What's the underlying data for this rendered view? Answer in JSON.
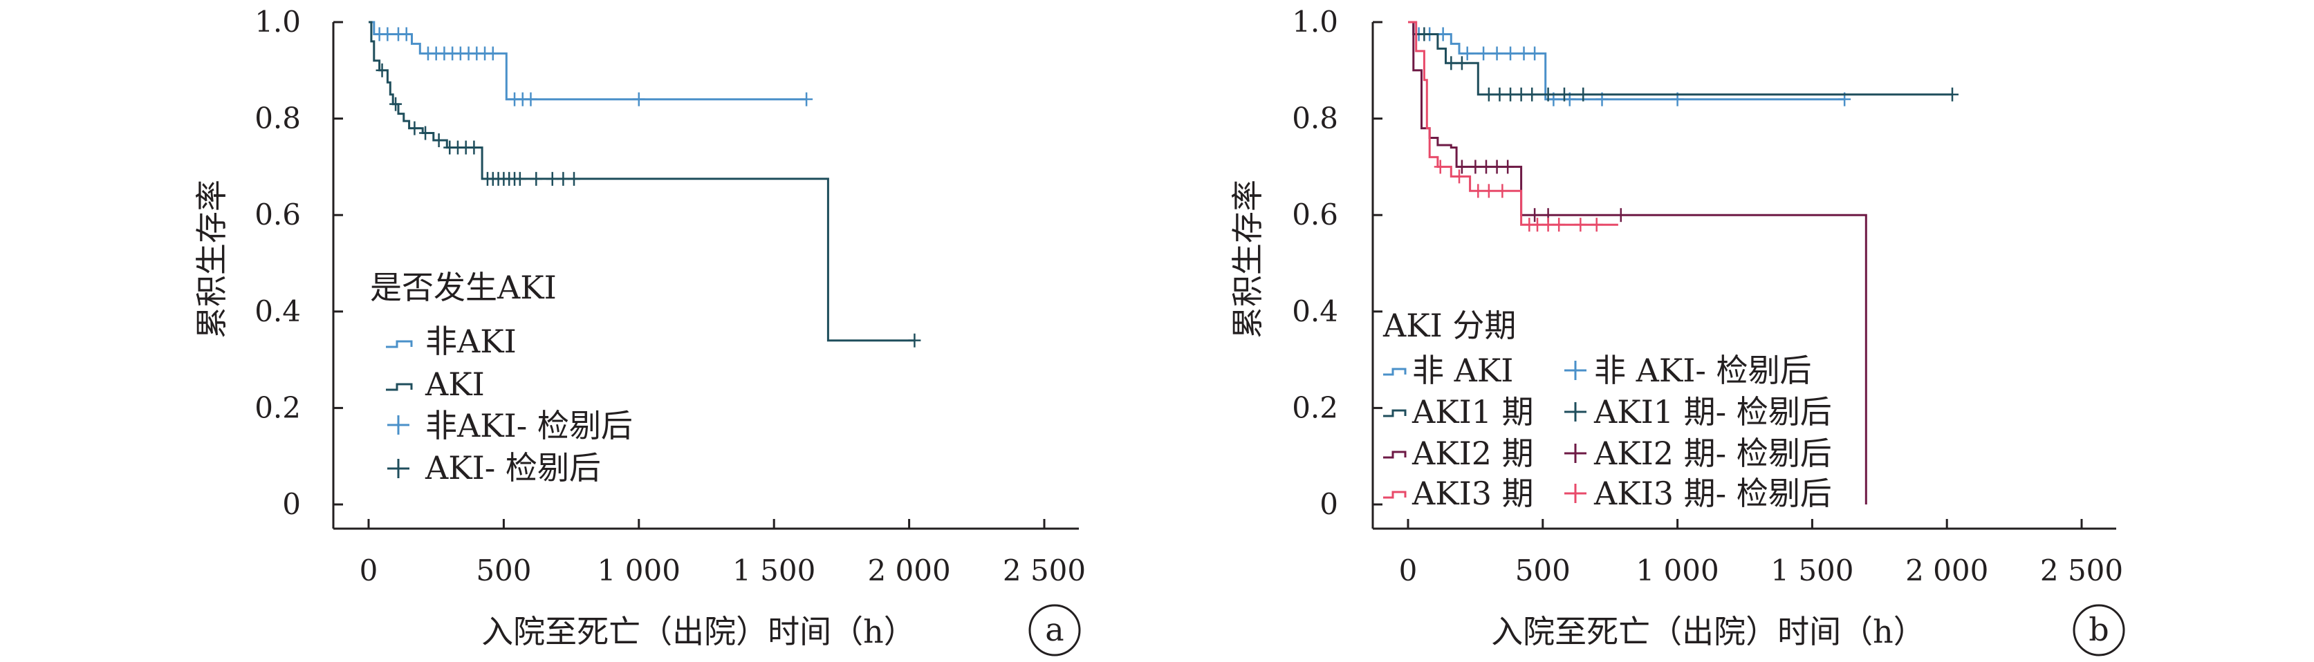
{
  "colors": {
    "non_aki": "#4a90c9",
    "aki": "#1f4e5c",
    "aki1": "#1f4e5c",
    "aki2": "#6e1a45",
    "aki3": "#e84a6a",
    "axis": "#231f20"
  },
  "chart_data": [
    {
      "type": "line",
      "panel_label": "a",
      "xlabel": "入院至死亡（出院）时间（h）",
      "ylabel": "累积生存率",
      "xlim": [
        0,
        2500
      ],
      "ylim": [
        0,
        1.0
      ],
      "x_ticks": [
        "0",
        "500",
        "1 000",
        "1 500",
        "2 000",
        "2 500"
      ],
      "x_tick_values": [
        0,
        500,
        1000,
        1500,
        2000,
        2500
      ],
      "y_ticks": [
        "0",
        "0.2",
        "0.4",
        "0.6",
        "0.8",
        "1.0"
      ],
      "y_tick_values": [
        0,
        0.2,
        0.4,
        0.6,
        0.8,
        1.0
      ],
      "legend_title": "是否发生AKI",
      "legend": [
        "非AKI",
        "AKI",
        "非AKI- 检剔后",
        "AKI- 检剔后"
      ],
      "legend_position": "bottom-left",
      "series": [
        {
          "name": "非AKI",
          "color_key": "non_aki",
          "steps": [
            [
              0,
              1.0
            ],
            [
              20,
              0.975
            ],
            [
              160,
              0.955
            ],
            [
              190,
              0.935
            ],
            [
              510,
              0.84
            ],
            [
              1620,
              0.84
            ]
          ],
          "censored": [
            [
              40,
              0.975
            ],
            [
              70,
              0.975
            ],
            [
              110,
              0.975
            ],
            [
              140,
              0.975
            ],
            [
              220,
              0.935
            ],
            [
              250,
              0.935
            ],
            [
              280,
              0.935
            ],
            [
              310,
              0.935
            ],
            [
              340,
              0.935
            ],
            [
              370,
              0.935
            ],
            [
              400,
              0.935
            ],
            [
              430,
              0.935
            ],
            [
              460,
              0.935
            ],
            [
              540,
              0.84
            ],
            [
              570,
              0.84
            ],
            [
              600,
              0.84
            ],
            [
              1000,
              0.84
            ],
            [
              1620,
              0.84
            ]
          ]
        },
        {
          "name": "AKI",
          "color_key": "aki",
          "steps": [
            [
              0,
              1.0
            ],
            [
              10,
              0.96
            ],
            [
              20,
              0.92
            ],
            [
              40,
              0.9
            ],
            [
              70,
              0.875
            ],
            [
              80,
              0.85
            ],
            [
              90,
              0.83
            ],
            [
              110,
              0.81
            ],
            [
              130,
              0.795
            ],
            [
              150,
              0.78
            ],
            [
              200,
              0.77
            ],
            [
              240,
              0.755
            ],
            [
              290,
              0.74
            ],
            [
              420,
              0.675
            ],
            [
              1700,
              0.34
            ],
            [
              2020,
              0.34
            ]
          ],
          "censored": [
            [
              50,
              0.9
            ],
            [
              100,
              0.83
            ],
            [
              170,
              0.78
            ],
            [
              210,
              0.77
            ],
            [
              260,
              0.755
            ],
            [
              300,
              0.74
            ],
            [
              330,
              0.74
            ],
            [
              360,
              0.74
            ],
            [
              390,
              0.74
            ],
            [
              440,
              0.675
            ],
            [
              460,
              0.675
            ],
            [
              480,
              0.675
            ],
            [
              500,
              0.675
            ],
            [
              520,
              0.675
            ],
            [
              540,
              0.675
            ],
            [
              560,
              0.675
            ],
            [
              620,
              0.675
            ],
            [
              680,
              0.675
            ],
            [
              720,
              0.675
            ],
            [
              760,
              0.675
            ],
            [
              2020,
              0.34
            ]
          ]
        }
      ]
    },
    {
      "type": "line",
      "panel_label": "b",
      "xlabel": "入院至死亡（出院）时间（h）",
      "ylabel": "累积生存率",
      "xlim": [
        0,
        2500
      ],
      "ylim": [
        0,
        1.0
      ],
      "x_ticks": [
        "0",
        "500",
        "1 000",
        "1 500",
        "2 000",
        "2 500"
      ],
      "x_tick_values": [
        0,
        500,
        1000,
        1500,
        2000,
        2500
      ],
      "y_ticks": [
        "0",
        "0.2",
        "0.4",
        "0.6",
        "0.8",
        "1.0"
      ],
      "y_tick_values": [
        0,
        0.2,
        0.4,
        0.6,
        0.8,
        1.0
      ],
      "legend_title": "AKI 分期",
      "legend": [
        "非 AKI",
        "非 AKI- 检剔后",
        "AKI1 期",
        "AKI1 期- 检剔后",
        "AKI2 期",
        "AKI2 期- 检剔后",
        "AKI3 期",
        "AKI3 期- 检剔后"
      ],
      "legend_position": "bottom-left",
      "series": [
        {
          "name": "非 AKI",
          "color_key": "non_aki",
          "steps": [
            [
              0,
              1.0
            ],
            [
              20,
              0.975
            ],
            [
              160,
              0.955
            ],
            [
              190,
              0.935
            ],
            [
              510,
              0.84
            ],
            [
              1620,
              0.84
            ]
          ],
          "censored": [
            [
              40,
              0.975
            ],
            [
              80,
              0.975
            ],
            [
              130,
              0.975
            ],
            [
              220,
              0.935
            ],
            [
              280,
              0.935
            ],
            [
              330,
              0.935
            ],
            [
              380,
              0.935
            ],
            [
              430,
              0.935
            ],
            [
              470,
              0.935
            ],
            [
              540,
              0.84
            ],
            [
              600,
              0.84
            ],
            [
              720,
              0.84
            ],
            [
              1000,
              0.84
            ],
            [
              1620,
              0.84
            ]
          ]
        },
        {
          "name": "AKI1 期",
          "color_key": "aki1",
          "steps": [
            [
              0,
              1.0
            ],
            [
              20,
              0.975
            ],
            [
              110,
              0.945
            ],
            [
              140,
              0.915
            ],
            [
              260,
              0.85
            ],
            [
              2020,
              0.85
            ]
          ],
          "censored": [
            [
              60,
              0.975
            ],
            [
              160,
              0.915
            ],
            [
              200,
              0.915
            ],
            [
              300,
              0.85
            ],
            [
              340,
              0.85
            ],
            [
              380,
              0.85
            ],
            [
              420,
              0.85
            ],
            [
              460,
              0.85
            ],
            [
              520,
              0.85
            ],
            [
              580,
              0.85
            ],
            [
              650,
              0.85
            ],
            [
              2020,
              0.85
            ]
          ]
        },
        {
          "name": "AKI2 期",
          "color_key": "aki2",
          "steps": [
            [
              0,
              1.0
            ],
            [
              20,
              0.9
            ],
            [
              50,
              0.78
            ],
            [
              80,
              0.76
            ],
            [
              110,
              0.745
            ],
            [
              160,
              0.74
            ],
            [
              180,
              0.7
            ],
            [
              420,
              0.6
            ],
            [
              1700,
              0.6
            ],
            [
              1700,
              0.0
            ]
          ],
          "censored": [
            [
              200,
              0.7
            ],
            [
              250,
              0.7
            ],
            [
              290,
              0.7
            ],
            [
              330,
              0.7
            ],
            [
              370,
              0.7
            ],
            [
              470,
              0.6
            ],
            [
              520,
              0.6
            ],
            [
              790,
              0.6
            ]
          ]
        },
        {
          "name": "AKI3 期",
          "color_key": "aki3",
          "steps": [
            [
              0,
              1.0
            ],
            [
              30,
              0.94
            ],
            [
              60,
              0.88
            ],
            [
              70,
              0.78
            ],
            [
              80,
              0.72
            ],
            [
              110,
              0.7
            ],
            [
              160,
              0.68
            ],
            [
              230,
              0.65
            ],
            [
              420,
              0.58
            ],
            [
              780,
              0.58
            ]
          ],
          "censored": [
            [
              120,
              0.7
            ],
            [
              190,
              0.68
            ],
            [
              260,
              0.65
            ],
            [
              300,
              0.65
            ],
            [
              350,
              0.65
            ],
            [
              450,
              0.58
            ],
            [
              480,
              0.58
            ],
            [
              520,
              0.58
            ],
            [
              560,
              0.58
            ],
            [
              640,
              0.58
            ],
            [
              700,
              0.58
            ]
          ]
        }
      ]
    }
  ]
}
